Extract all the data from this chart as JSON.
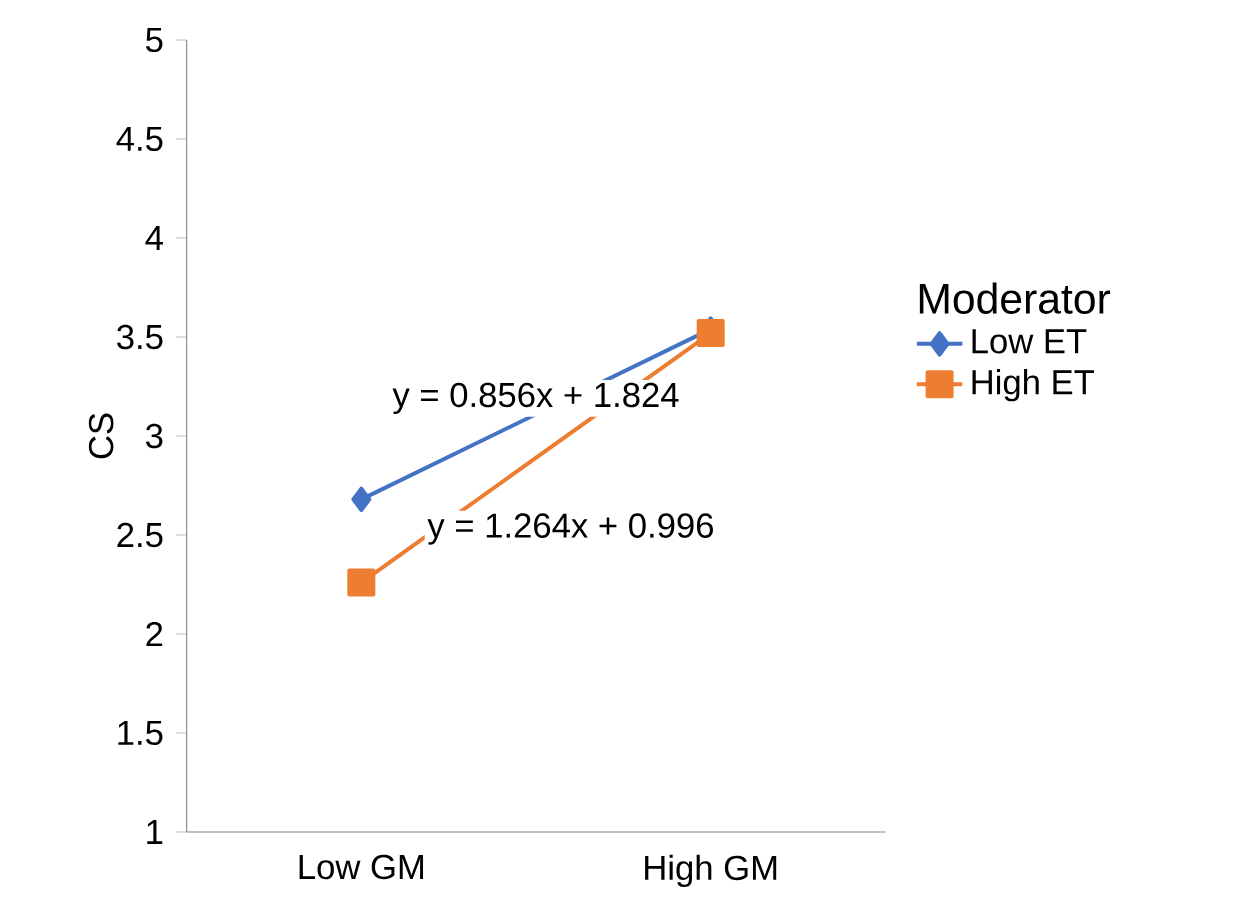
{
  "chart_data": {
    "type": "line",
    "ylabel": "CS",
    "legend_title": "Moderator",
    "categories": [
      "Low GM",
      "High GM"
    ],
    "series": [
      {
        "name": "Low ET",
        "color": "#4472c4",
        "marker": "diamond",
        "values": [
          2.68,
          3.54
        ]
      },
      {
        "name": "High ET",
        "color": "#ed7d31",
        "marker": "square",
        "values": [
          2.26,
          3.52
        ]
      }
    ],
    "ylim": [
      1,
      5
    ],
    "yticks": [
      1,
      1.5,
      2,
      2.5,
      3,
      3.5,
      4,
      4.5,
      5
    ],
    "grid": false,
    "legend": "right",
    "line_style": "solid",
    "annotations": [
      "y = 0.856x + 1.824",
      "y = 1.264x + 0.996"
    ]
  }
}
